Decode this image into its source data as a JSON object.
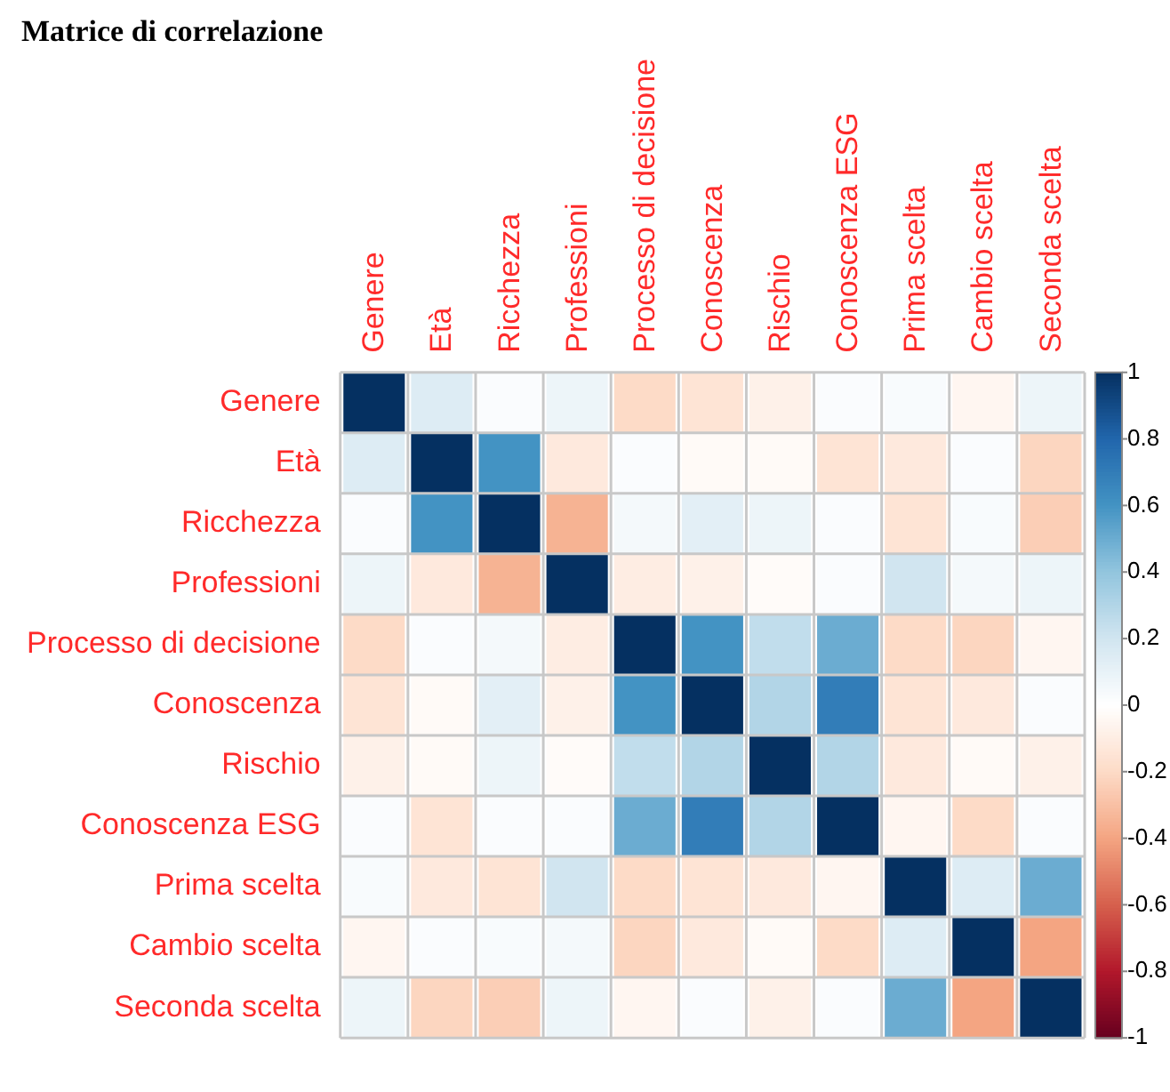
{
  "chart_data": {
    "type": "heatmap",
    "title": "Matrice di correlazione",
    "categories": [
      "Genere",
      "Età",
      "Ricchezza",
      "Professioni",
      "Processo di decisione",
      "Conoscenza",
      "Rischio",
      "Conoscenza ESG",
      "Prima scelta",
      "Cambio scelta",
      "Seconda scelta"
    ],
    "y_categories": [
      "Genere",
      "Età",
      "Ricchezza",
      "Professioni",
      "Processo di decisione",
      "Conoscenza",
      "Rischio",
      "Conoscenza ESG",
      "Prima scelta",
      "Cambio scelta",
      "Seconda scelta"
    ],
    "cells": [
      [
        1,
        0.15,
        0.02,
        0.08,
        -0.2,
        -0.15,
        -0.08,
        0.02,
        0.03,
        -0.05,
        0.08
      ],
      [
        0.15,
        1,
        0.6,
        -0.12,
        0.02,
        -0.03,
        -0.03,
        -0.15,
        -0.12,
        0.02,
        -0.22
      ],
      [
        0.02,
        0.6,
        1,
        -0.35,
        0.05,
        0.12,
        0.08,
        0.02,
        -0.15,
        0.03,
        -0.25
      ],
      [
        0.08,
        -0.12,
        -0.35,
        1,
        -0.1,
        -0.08,
        -0.02,
        0.02,
        0.2,
        0.05,
        0.08
      ],
      [
        -0.2,
        0.02,
        0.05,
        -0.1,
        1,
        0.6,
        0.25,
        0.5,
        -0.2,
        -0.22,
        -0.05
      ],
      [
        -0.15,
        -0.03,
        0.12,
        -0.08,
        0.6,
        1,
        0.3,
        0.7,
        -0.15,
        -0.12,
        0.02
      ],
      [
        -0.08,
        -0.03,
        0.08,
        -0.02,
        0.25,
        0.3,
        1,
        0.3,
        -0.12,
        -0.03,
        -0.08
      ],
      [
        0.02,
        -0.15,
        0.02,
        0.02,
        0.5,
        0.7,
        0.3,
        1,
        -0.05,
        -0.2,
        0.02
      ],
      [
        0.03,
        -0.12,
        -0.15,
        0.2,
        -0.2,
        -0.15,
        -0.12,
        -0.05,
        1,
        0.15,
        0.5
      ],
      [
        -0.05,
        0.02,
        0.03,
        0.05,
        -0.22,
        -0.12,
        -0.03,
        -0.2,
        0.15,
        1,
        -0.4
      ],
      [
        0.08,
        -0.22,
        -0.25,
        0.08,
        -0.05,
        0.02,
        -0.08,
        0.02,
        0.5,
        -0.4,
        1
      ]
    ],
    "clim": [
      -1,
      1
    ],
    "cticks": [
      -1,
      -0.8,
      -0.6,
      -0.4,
      -0.2,
      0,
      0.2,
      0.4,
      0.6,
      0.8,
      1
    ],
    "grid": true
  }
}
